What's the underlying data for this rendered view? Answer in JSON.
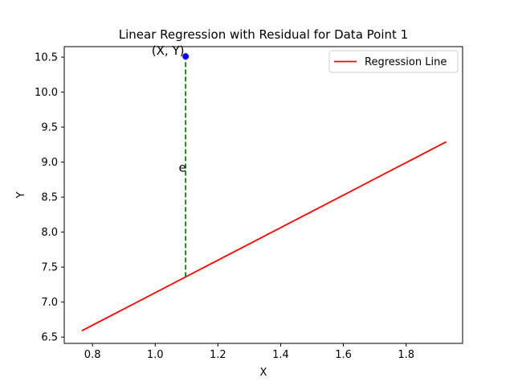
{
  "chart_data": {
    "type": "line",
    "title": "Linear Regression with Residual for Data Point 1",
    "xlabel": "X",
    "ylabel": "Y",
    "xlim": [
      0.71,
      1.98
    ],
    "ylim": [
      6.41,
      10.65
    ],
    "x_ticks": [
      0.8,
      1.0,
      1.2,
      1.4,
      1.6,
      1.8
    ],
    "x_tick_labels": [
      "0.8",
      "1.0",
      "1.2",
      "1.4",
      "1.6",
      "1.8"
    ],
    "y_ticks": [
      6.5,
      7.0,
      7.5,
      8.0,
      8.5,
      9.0,
      9.5,
      10.0,
      10.5
    ],
    "y_tick_labels": [
      "6.5",
      "7.0",
      "7.5",
      "8.0",
      "8.5",
      "9.0",
      "9.5",
      "10.0",
      "10.5"
    ],
    "grid": false,
    "legend_position": "top-right",
    "series": [
      {
        "name": "Regression Line",
        "color": "#ff0000",
        "x": [
          0.766,
          1.928
        ],
        "y": [
          6.59,
          9.29
        ]
      }
    ],
    "data_point": {
      "x": 1.097,
      "y": 10.51,
      "color": "#0000ff",
      "label": "(X, Y)"
    },
    "residual": {
      "x": 1.097,
      "y_from": 7.36,
      "y_to": 10.51,
      "color": "#008000",
      "style": "dashed",
      "label": "e"
    }
  }
}
